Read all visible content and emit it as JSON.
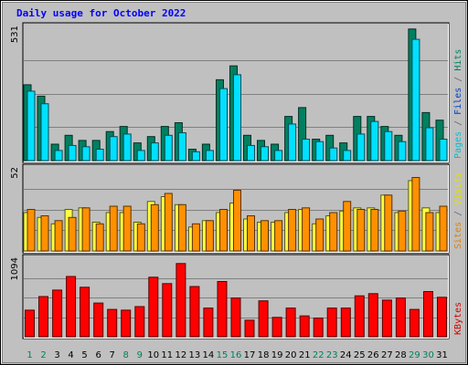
{
  "chart_data": {
    "type": "bar",
    "title": "Daily usage for October 2022",
    "categories": [
      "1",
      "2",
      "3",
      "4",
      "5",
      "6",
      "7",
      "8",
      "9",
      "10",
      "11",
      "12",
      "13",
      "14",
      "15",
      "16",
      "17",
      "18",
      "19",
      "20",
      "21",
      "22",
      "23",
      "24",
      "25",
      "26",
      "27",
      "28",
      "29",
      "30",
      "31"
    ],
    "weekend_days": [
      "1",
      "2",
      "8",
      "9",
      "15",
      "16",
      "22",
      "23",
      "29",
      "30"
    ],
    "panels": [
      {
        "id": "hits",
        "y_max_label": "531",
        "ylim": [
          0,
          531
        ],
        "side_labels": [
          {
            "text": "Pages",
            "color": "#00c0d0"
          },
          {
            "text": " / ",
            "color": "#666666"
          },
          {
            "text": "Files",
            "color": "#0040c0"
          },
          {
            "text": " / ",
            "color": "#666666"
          },
          {
            "text": "Hits",
            "color": "#008060"
          }
        ],
        "series": [
          {
            "name": "Hits",
            "color": "#008060",
            "values": [
              300,
              255,
              65,
              100,
              80,
              80,
              115,
              135,
              70,
              95,
              135,
              150,
              45,
              65,
              320,
              375,
              100,
              80,
              65,
              175,
              210,
              85,
              100,
              70,
              175,
              175,
              135,
              100,
              521,
              190,
              160
            ]
          },
          {
            "name": "Files",
            "color": "#00e0ff",
            "values": [
              275,
              225,
              40,
              60,
              55,
              45,
              95,
              105,
              40,
              70,
              100,
              110,
              35,
              40,
              285,
              340,
              60,
              55,
              40,
              145,
              85,
              75,
              50,
              40,
              105,
              155,
              115,
              75,
              480,
              130,
              85
            ]
          }
        ]
      },
      {
        "id": "visits",
        "y_max_label": "52",
        "ylim": [
          0,
          52
        ],
        "side_labels": [
          {
            "text": "Sites",
            "color": "#e08000"
          },
          {
            "text": " / ",
            "color": "#666666"
          },
          {
            "text": "Visits",
            "color": "#e0e000"
          }
        ],
        "series": [
          {
            "name": "Visits",
            "color": "#ffff40",
            "values": [
              24,
              21,
              17,
              26,
              27,
              18,
              24,
              24,
              18,
              31,
              34,
              29,
              15,
              19,
              24,
              30,
              20,
              18,
              18,
              24,
              26,
              17,
              22,
              25,
              27,
              27,
              35,
              24,
              44,
              27,
              24
            ]
          },
          {
            "name": "Sites",
            "color": "#ff9000",
            "values": [
              26,
              22,
              19,
              21,
              27,
              17,
              28,
              28,
              17,
              29,
              36,
              29,
              17,
              19,
              26,
              38,
              22,
              19,
              19,
              26,
              27,
              20,
              24,
              31,
              26,
              26,
              35,
              25,
              46,
              24,
              28
            ]
          }
        ]
      },
      {
        "id": "kbytes",
        "y_max_label": "1094",
        "ylim": [
          0,
          1094
        ],
        "side_labels": [
          {
            "text": "KBytes",
            "color": "#d00000"
          }
        ],
        "series": [
          {
            "name": "KBytes",
            "color": "#ff0000",
            "values": [
              370,
              560,
              650,
              840,
              690,
              470,
              380,
              370,
              420,
              830,
              740,
              1020,
              700,
              400,
              770,
              540,
              230,
              500,
              270,
              400,
              290,
              260,
              400,
              400,
              570,
              600,
              510,
              540,
              380,
              630,
              550
            ]
          }
        ]
      }
    ]
  },
  "colors": {
    "frame_bg": "#c0c0c0",
    "panel_bg": "#c0c0c0",
    "grid": "#808080",
    "weekday_label": "#0000ff",
    "weekend_label": "#008060",
    "title_color": "#0000ff"
  }
}
